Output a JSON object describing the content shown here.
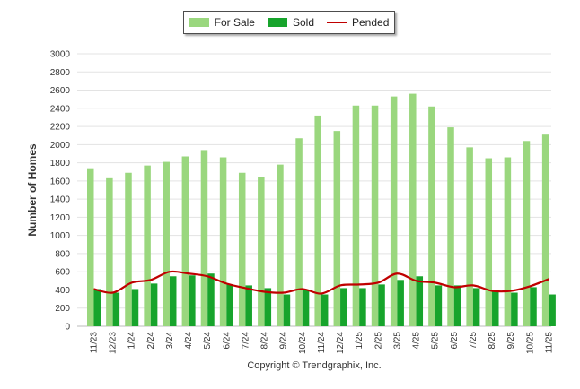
{
  "chart_data": {
    "type": "bar",
    "title": "",
    "xlabel": "",
    "ylabel": "Number of Homes",
    "ylim": [
      0,
      3000
    ],
    "yticks": [
      0,
      200,
      400,
      600,
      800,
      1000,
      1200,
      1400,
      1600,
      1800,
      2000,
      2200,
      2400,
      2600,
      2800,
      3000
    ],
    "categories": [
      "11/23",
      "12/23",
      "1/24",
      "2/24",
      "3/24",
      "4/24",
      "5/24",
      "6/24",
      "7/24",
      "8/24",
      "9/24",
      "10/24",
      "11/24",
      "12/24",
      "1/25",
      "2/25",
      "3/25",
      "4/25",
      "5/25",
      "6/25",
      "7/25",
      "8/25",
      "9/25",
      "10/25",
      "11/25"
    ],
    "series": [
      {
        "name": "For Sale",
        "type": "bar",
        "color": "#9ad77e",
        "values": [
          1740,
          1630,
          1690,
          1770,
          1810,
          1870,
          1940,
          1860,
          1690,
          1640,
          1780,
          2070,
          2320,
          2150,
          2430,
          2430,
          2530,
          2560,
          2420,
          2190,
          1970,
          1850,
          1860,
          2040,
          2110
        ]
      },
      {
        "name": "Sold",
        "type": "bar",
        "color": "#17a42c",
        "values": [
          410,
          370,
          410,
          470,
          550,
          560,
          580,
          460,
          450,
          420,
          350,
          400,
          350,
          420,
          420,
          460,
          510,
          550,
          450,
          450,
          420,
          380,
          370,
          430,
          350
        ]
      },
      {
        "name": "Pended",
        "type": "line",
        "color": "#c00000",
        "values": [
          410,
          370,
          480,
          510,
          600,
          580,
          550,
          470,
          420,
          380,
          370,
          410,
          360,
          450,
          460,
          480,
          580,
          500,
          480,
          430,
          450,
          390,
          390,
          440,
          520
        ]
      }
    ],
    "legend_position": "top-center"
  },
  "footer": {
    "copyright": "Copyright © Trendgraphix, Inc."
  }
}
